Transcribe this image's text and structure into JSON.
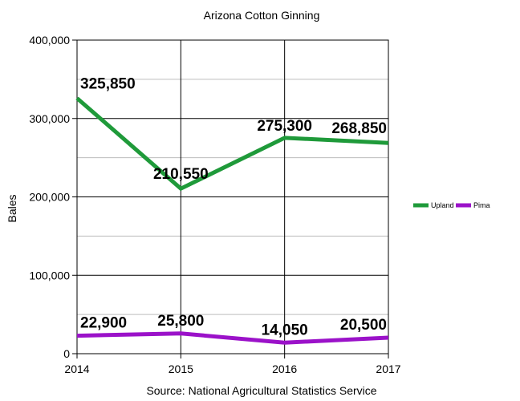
{
  "chart_data": {
    "type": "line",
    "title": "Arizona Cotton Ginning",
    "xlabel": "Source: National Agricultural Statistics Service",
    "ylabel": "Bales",
    "x": [
      "2014",
      "2015",
      "2016",
      "2017"
    ],
    "ylim": [
      0,
      400000
    ],
    "yticks": [
      0,
      100000,
      200000,
      300000,
      400000
    ],
    "ytick_labels": [
      "0",
      "100,000",
      "200,000",
      "300,000",
      "400,000"
    ],
    "grid": true,
    "legend_position": "right",
    "series": [
      {
        "name": "Upland",
        "color": "#1f9a3a",
        "values": [
          325850,
          210550,
          275300,
          268850
        ],
        "labels": [
          "325,850",
          "210,550",
          "275,300",
          "268,850"
        ]
      },
      {
        "name": "Pima",
        "color": "#9b12c9",
        "values": [
          22900,
          25800,
          14050,
          20500
        ],
        "labels": [
          "22,900",
          "25,800",
          "14,050",
          "20,500"
        ]
      }
    ]
  }
}
